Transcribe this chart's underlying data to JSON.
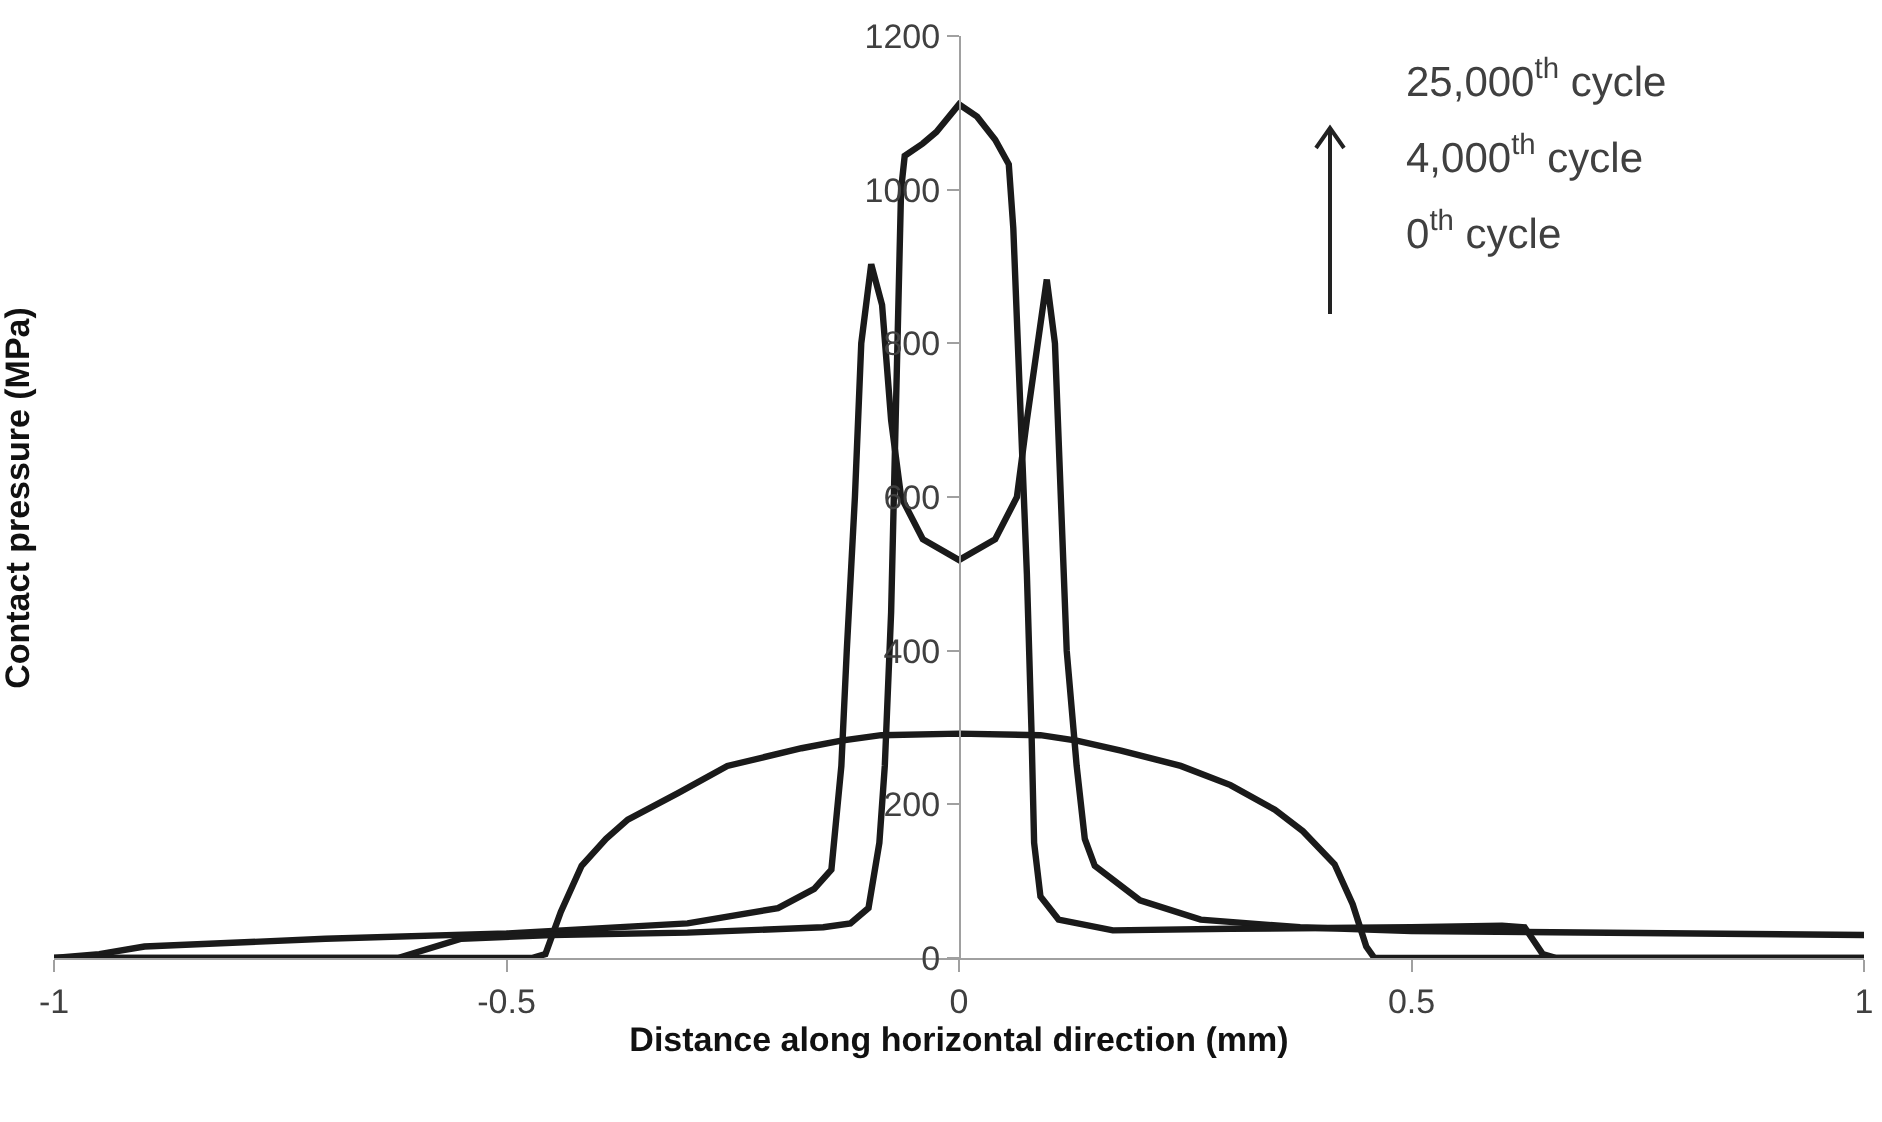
{
  "chart_data": {
    "type": "line",
    "xlabel": "Distance along horizontal direction (mm)",
    "ylabel": "Contact pressure (MPa)",
    "annotations": [
      "25,000$^{th}$ cycle",
      "4,000$^{th}$ cycle",
      "0$^{th}$ cycle"
    ],
    "xlim": [
      -1,
      1
    ],
    "xticks": [
      -1,
      -0.5,
      0,
      0.5,
      1
    ],
    "ylim": [
      0,
      1200
    ],
    "yticks": [
      0,
      200,
      400,
      600,
      800,
      1000,
      1200
    ],
    "grid": false,
    "marker": "none",
    "line_style": "solid",
    "series": [
      {
        "color": "#1a1a1a",
        "x": [
          -1,
          -0.472,
          -0.457,
          -0.44,
          -0.417,
          -0.39,
          -0.366,
          -0.31,
          -0.256,
          -0.174,
          -0.13,
          -0.086,
          0,
          0.09,
          0.13,
          0.179,
          0.245,
          0.3,
          0.349,
          0.38,
          0.415,
          0.435,
          0.45,
          0.459,
          1
        ],
        "values": [
          0,
          0,
          5,
          60,
          120,
          155,
          180,
          215,
          250,
          273,
          283,
          290,
          292,
          290,
          283,
          270,
          250,
          225,
          193,
          165,
          122,
          70,
          15,
          0,
          0
        ]
      },
      {
        "color": "#1a1a1a",
        "x": [
          -1,
          -0.95,
          -0.9,
          -0.7,
          -0.5,
          -0.3,
          -0.2,
          -0.16,
          -0.141,
          -0.13,
          -0.124,
          -0.115,
          -0.108,
          -0.097,
          -0.085,
          -0.075,
          -0.064,
          -0.04,
          0,
          0.04,
          0.064,
          0.075,
          0.097,
          0.106,
          0.119,
          0.13,
          0.139,
          0.15,
          0.2,
          0.267,
          0.377,
          0.5,
          1
        ],
        "values": [
          0,
          5,
          15,
          25,
          32,
          45,
          65,
          90,
          115,
          250,
          400,
          600,
          800,
          903,
          850,
          700,
          600,
          545,
          518,
          545,
          600,
          700,
          883,
          800,
          400,
          250,
          155,
          120,
          75,
          50,
          40,
          35,
          30
        ]
      },
      {
        "color": "#1a1a1a",
        "x": [
          -1,
          -0.62,
          -0.55,
          -0.45,
          -0.3,
          -0.15,
          -0.12,
          -0.1,
          -0.088,
          -0.082,
          -0.075,
          -0.07,
          -0.064,
          -0.06,
          -0.04,
          -0.025,
          0,
          0.02,
          0.04,
          0.055,
          0.06,
          0.075,
          0.08,
          0.083,
          0.09,
          0.11,
          0.17,
          0.3,
          0.5,
          0.6,
          0.625,
          0.645,
          0.66,
          1
        ],
        "values": [
          0,
          0,
          25,
          30,
          33,
          40,
          45,
          65,
          150,
          250,
          450,
          700,
          1000,
          1044,
          1060,
          1075,
          1111,
          1095,
          1065,
          1033,
          950,
          500,
          300,
          150,
          80,
          50,
          36,
          38,
          40,
          42,
          40,
          5,
          0,
          0
        ]
      }
    ]
  }
}
